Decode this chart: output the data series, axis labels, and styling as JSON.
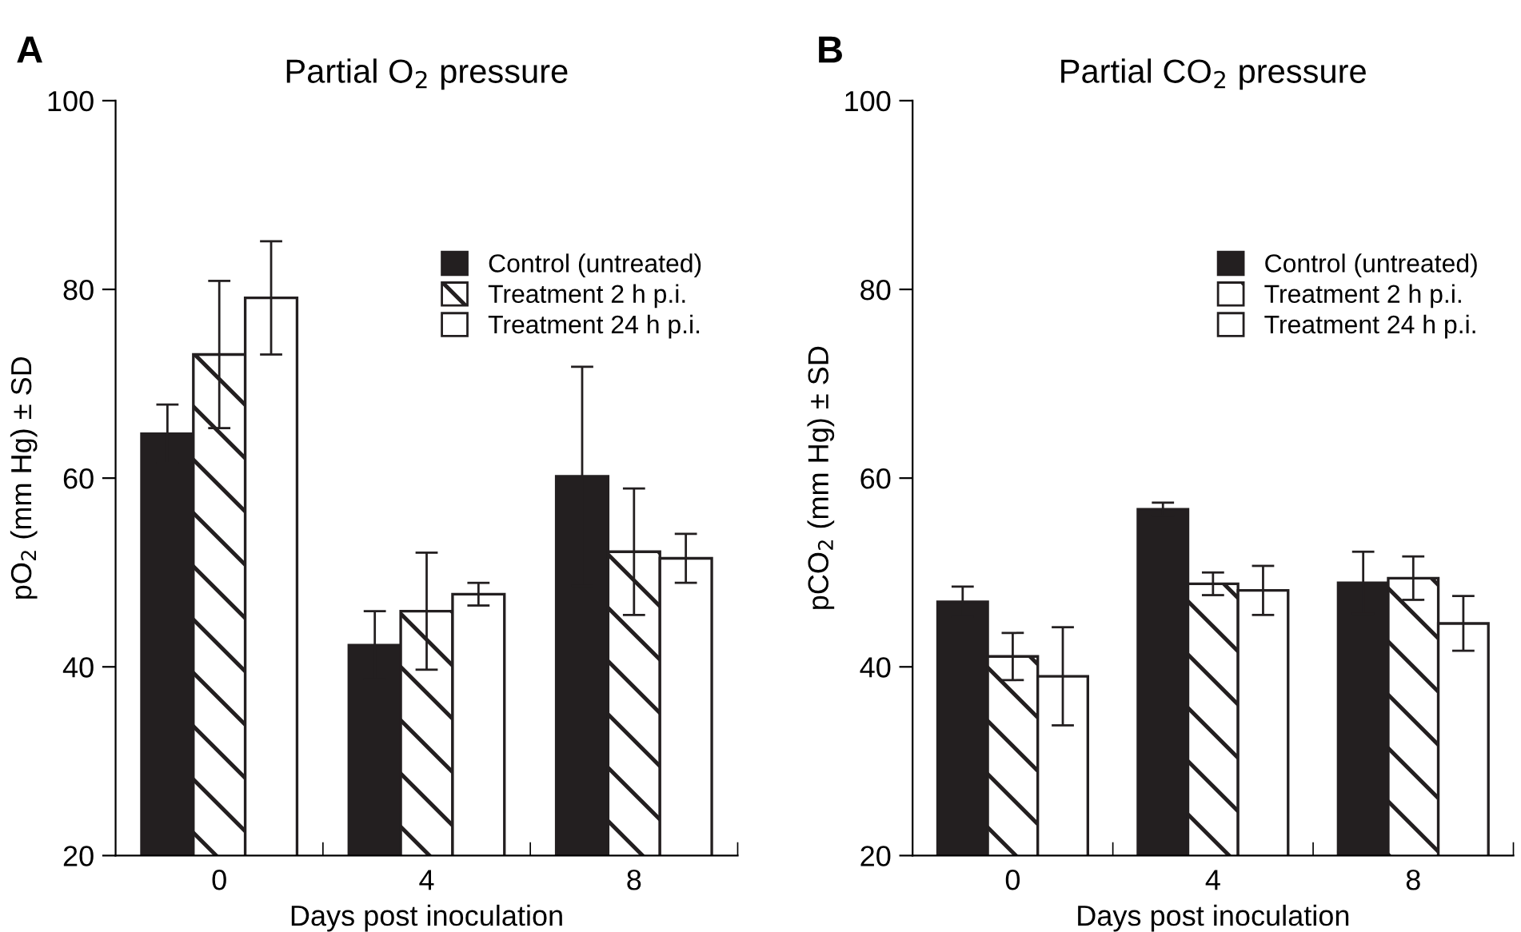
{
  "chart_data": [
    {
      "type": "bar",
      "title": "Partial O$_{2}$ pressure",
      "xlabel": "Days post inoculation",
      "ylabel": "pO$_{2}$ (mm Hg) ± SD",
      "categories": [
        "0",
        "4",
        "8"
      ],
      "ylim": [
        20,
        100
      ],
      "yticks": [
        20,
        40,
        60,
        80,
        100
      ],
      "grid": false,
      "legend": "top right",
      "annotations": [
        "A"
      ],
      "series": [
        {
          "name": "Control (untreated)",
          "color": "#231f20",
          "values": [
            64.7,
            42.3,
            60.2
          ],
          "errors": [
            3.1,
            3.6,
            11.6
          ]
        },
        {
          "name": "Treatment 2 h p.i.",
          "color": "#231f20",
          "values": [
            73.1,
            45.9,
            52.2
          ],
          "errors": [
            7.8,
            6.2,
            6.7
          ]
        },
        {
          "name": "Treatment 24 h p.i.",
          "color": "#ffffff",
          "values": [
            79.1,
            47.7,
            51.5
          ],
          "errors": [
            6.0,
            1.2,
            2.6
          ]
        }
      ]
    },
    {
      "type": "bar",
      "title": "Partial CO$_{2}$ pressure",
      "xlabel": "Days post inoculation",
      "ylabel": "pCO$_{2}$ (mm Hg) ± SD",
      "categories": [
        "0",
        "4",
        "8"
      ],
      "ylim": [
        20,
        100
      ],
      "yticks": [
        20,
        40,
        60,
        80,
        100
      ],
      "grid": false,
      "legend": "top right",
      "annotations": [
        "B"
      ],
      "series": [
        {
          "name": "Control (untreated)",
          "color": "#231f20",
          "values": [
            46.9,
            56.7,
            48.9
          ],
          "errors": [
            1.6,
            0.7,
            3.3
          ]
        },
        {
          "name": "Treatment 2 h p.i.",
          "color": "#231f20",
          "values": [
            41.1,
            48.8,
            49.4
          ],
          "errors": [
            2.5,
            1.2,
            2.3
          ]
        },
        {
          "name": "Treatment 24 h p.i.",
          "color": "#ffffff",
          "values": [
            39.0,
            48.1,
            44.6
          ],
          "errors": [
            5.2,
            2.6,
            2.9
          ]
        }
      ]
    }
  ]
}
